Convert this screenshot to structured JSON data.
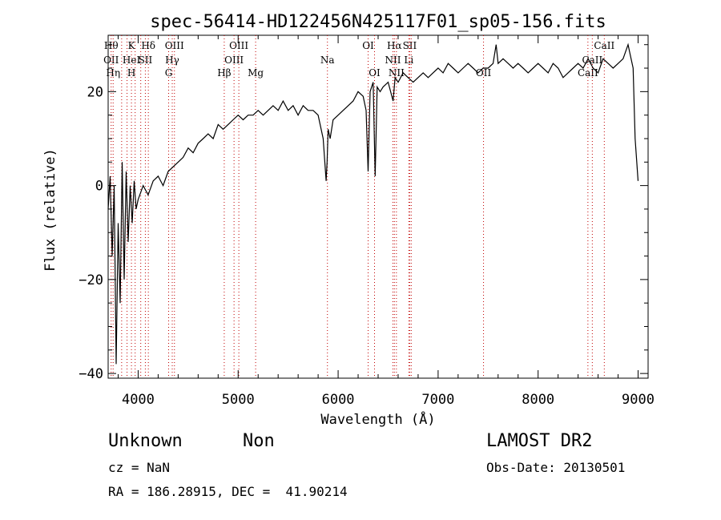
{
  "chart_data": {
    "type": "line",
    "title": "spec-56414-HD122456N425117F01_sp05-156.fits",
    "xlabel": "Wavelength (Å)",
    "ylabel": "Flux (relative)",
    "xlim": [
      3700,
      9100
    ],
    "ylim": [
      -41,
      32
    ],
    "xticks": [
      4000,
      5000,
      6000,
      7000,
      8000,
      9000
    ],
    "xtick_labels": [
      "4000",
      "5000",
      "6000",
      "7000",
      "8000",
      "9000"
    ],
    "yticks": [
      -40,
      -20,
      0,
      20
    ],
    "ytick_labels": [
      "−40",
      "−20",
      "0",
      "20"
    ],
    "grid": false,
    "series": [
      {
        "color": "#000000",
        "x": [
          3700,
          3720,
          3740,
          3760,
          3780,
          3800,
          3820,
          3840,
          3860,
          3880,
          3900,
          3920,
          3940,
          3960,
          3980,
          4000,
          4050,
          4100,
          4150,
          4200,
          4250,
          4300,
          4350,
          4400,
          4450,
          4500,
          4550,
          4600,
          4650,
          4700,
          4750,
          4800,
          4850,
          4900,
          4950,
          5000,
          5050,
          5100,
          5150,
          5200,
          5250,
          5300,
          5350,
          5400,
          5450,
          5500,
          5550,
          5600,
          5650,
          5700,
          5750,
          5800,
          5850,
          5880,
          5890,
          5900,
          5920,
          5950,
          6000,
          6050,
          6100,
          6150,
          6200,
          6250,
          6280,
          6300,
          6320,
          6350,
          6370,
          6390,
          6420,
          6450,
          6500,
          6550,
          6570,
          6600,
          6650,
          6700,
          6750,
          6800,
          6850,
          6900,
          6950,
          7000,
          7050,
          7100,
          7150,
          7200,
          7250,
          7300,
          7350,
          7400,
          7450,
          7500,
          7550,
          7580,
          7600,
          7650,
          7700,
          7750,
          7800,
          7850,
          7900,
          7950,
          8000,
          8050,
          8100,
          8150,
          8200,
          8250,
          8300,
          8350,
          8400,
          8450,
          8500,
          8550,
          8600,
          8650,
          8700,
          8750,
          8800,
          8850,
          8900,
          8920,
          8950,
          8970,
          9000
        ],
        "y": [
          -5,
          2,
          -15,
          0,
          -38,
          -8,
          -25,
          5,
          -20,
          3,
          -12,
          0,
          -8,
          1,
          -5,
          -3,
          0,
          -2,
          1,
          2,
          0,
          3,
          4,
          5,
          6,
          8,
          7,
          9,
          10,
          11,
          10,
          13,
          12,
          13,
          14,
          15,
          14,
          15,
          15,
          16,
          15,
          16,
          17,
          16,
          18,
          16,
          17,
          15,
          17,
          16,
          16,
          15,
          10,
          1,
          5,
          12,
          10,
          14,
          15,
          16,
          17,
          18,
          20,
          19,
          16,
          3,
          20,
          22,
          2,
          21,
          20,
          21,
          22,
          18,
          23,
          22,
          24,
          23,
          22,
          23,
          24,
          23,
          24,
          25,
          24,
          26,
          25,
          24,
          25,
          26,
          25,
          24,
          25,
          25,
          26,
          30,
          26,
          27,
          26,
          25,
          26,
          25,
          24,
          25,
          26,
          25,
          24,
          26,
          25,
          23,
          24,
          25,
          26,
          25,
          27,
          25,
          24,
          27,
          26,
          25,
          26,
          27,
          30,
          28,
          25,
          10,
          1
        ]
      }
    ],
    "line_markers": [
      {
        "x": 3730,
        "top": "Hθ",
        "mid": "OII",
        "bot": ""
      },
      {
        "x": 3750,
        "top": "",
        "mid": "",
        "bot": "Hη"
      },
      {
        "x": 3835,
        "top": "",
        "mid": "",
        "bot": ""
      },
      {
        "x": 3889,
        "top": "",
        "mid": "",
        "bot": ""
      },
      {
        "x": 3933,
        "top": "K",
        "mid": "HeI",
        "bot": "H"
      },
      {
        "x": 3970,
        "top": "",
        "mid": "",
        "bot": ""
      },
      {
        "x": 4026,
        "top": "",
        "mid": "",
        "bot": ""
      },
      {
        "x": 4072,
        "top": "",
        "mid": "SII",
        "bot": ""
      },
      {
        "x": 4102,
        "top": "Hδ",
        "mid": "",
        "bot": ""
      },
      {
        "x": 4305,
        "top": "",
        "mid": "",
        "bot": "G"
      },
      {
        "x": 4341,
        "top": "",
        "mid": "Hγ",
        "bot": ""
      },
      {
        "x": 4363,
        "top": "OIII",
        "mid": "",
        "bot": ""
      },
      {
        "x": 4861,
        "top": "",
        "mid": "",
        "bot": "Hβ"
      },
      {
        "x": 4959,
        "top": "",
        "mid": "OIII",
        "bot": ""
      },
      {
        "x": 5007,
        "top": "OIII",
        "mid": "",
        "bot": ""
      },
      {
        "x": 5175,
        "top": "",
        "mid": "",
        "bot": "Mg"
      },
      {
        "x": 5893,
        "top": "",
        "mid": "Na",
        "bot": ""
      },
      {
        "x": 6300,
        "top": "OI",
        "mid": "",
        "bot": ""
      },
      {
        "x": 6364,
        "top": "",
        "mid": "",
        "bot": "OI"
      },
      {
        "x": 6548,
        "top": "",
        "mid": "NII",
        "bot": ""
      },
      {
        "x": 6563,
        "top": "Hα",
        "mid": "",
        "bot": ""
      },
      {
        "x": 6583,
        "top": "",
        "mid": "",
        "bot": "NII"
      },
      {
        "x": 6707,
        "top": "",
        "mid": "Li",
        "bot": ""
      },
      {
        "x": 6716,
        "top": "SII",
        "mid": "",
        "bot": ""
      },
      {
        "x": 6731,
        "top": "",
        "mid": "",
        "bot": ""
      },
      {
        "x": 7454,
        "top": "",
        "mid": "",
        "bot": "OII"
      },
      {
        "x": 8498,
        "top": "",
        "mid": "",
        "bot": "CaII"
      },
      {
        "x": 8542,
        "top": "",
        "mid": "CaII",
        "bot": ""
      },
      {
        "x": 8662,
        "top": "CaII",
        "mid": "",
        "bot": ""
      }
    ]
  },
  "info": {
    "object_name": "Unknown",
    "object_class": "Non",
    "cz": "cz = NaN",
    "coords": "RA = 186.28915, DEC =  41.90214",
    "survey": "LAMOST DR2",
    "obs_date": "Obs-Date: 20130501"
  }
}
